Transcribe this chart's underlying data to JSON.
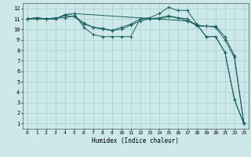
{
  "xlabel": "Humidex (Indice chaleur)",
  "xlim": [
    -0.5,
    23.5
  ],
  "ylim": [
    0.5,
    12.5
  ],
  "xticks": [
    0,
    1,
    2,
    3,
    4,
    5,
    6,
    7,
    8,
    9,
    10,
    11,
    12,
    13,
    14,
    15,
    16,
    17,
    18,
    19,
    20,
    21,
    22,
    23
  ],
  "yticks": [
    1,
    2,
    3,
    4,
    5,
    6,
    7,
    8,
    9,
    10,
    11,
    12
  ],
  "bg_color": "#cce8e8",
  "grid_color": "#aacece",
  "line_color": "#1a6060",
  "curves": [
    {
      "x": [
        0,
        1,
        2,
        3,
        4,
        5,
        6,
        7,
        8,
        9,
        10,
        11,
        12,
        13,
        14,
        15,
        16,
        17,
        18,
        19,
        20,
        21,
        22,
        23
      ],
      "y": [
        11,
        11,
        11,
        11,
        11.4,
        11.5,
        10.2,
        9.5,
        9.3,
        9.3,
        9.3,
        9.3,
        11.0,
        11.1,
        11.5,
        12.1,
        11.8,
        11.8,
        10.5,
        9.3,
        9.3,
        7.8,
        3.3,
        1.0
      ]
    },
    {
      "x": [
        0,
        1,
        2,
        3,
        4,
        5,
        6,
        7,
        8,
        9,
        10,
        11,
        12,
        13,
        14,
        15,
        16,
        17,
        18,
        19,
        20,
        21,
        22,
        23
      ],
      "y": [
        11,
        11.1,
        11,
        11,
        11.3,
        11.2,
        10.5,
        10.2,
        10.0,
        9.9,
        10.0,
        10.4,
        10.8,
        11.0,
        11.1,
        11.3,
        11.1,
        10.8,
        10.4,
        10.3,
        10.3,
        9.3,
        7.5,
        1.0
      ]
    },
    {
      "x": [
        0,
        1,
        2,
        3,
        4,
        5,
        6,
        7,
        8,
        9,
        10,
        11,
        12,
        13,
        14,
        15,
        16,
        17,
        18,
        19,
        20,
        21,
        22,
        23
      ],
      "y": [
        11,
        11.1,
        11,
        11.1,
        11.1,
        11.3,
        10.6,
        10.2,
        10.1,
        9.9,
        10.2,
        10.5,
        11.0,
        11.0,
        11.0,
        11.2,
        11.1,
        11.0,
        10.3,
        10.3,
        10.2,
        9.0,
        7.3,
        1.0
      ]
    },
    {
      "x": [
        0,
        1,
        2,
        3,
        4,
        5,
        17,
        18,
        19,
        20,
        21,
        22,
        23
      ],
      "y": [
        11,
        11,
        11,
        11,
        11.4,
        11.5,
        10.8,
        10.5,
        9.3,
        9.3,
        7.8,
        3.3,
        1.0
      ]
    }
  ]
}
